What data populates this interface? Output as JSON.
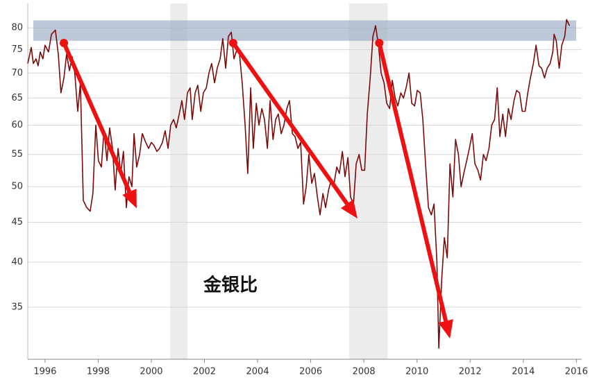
{
  "chart_data": {
    "type": "line",
    "annotation": "金银比",
    "log_y": true,
    "xlim": [
      1995.35,
      2016.2
    ],
    "ylim": [
      30,
      86
    ],
    "xticks": [
      1996,
      1998,
      2000,
      2002,
      2004,
      2006,
      2008,
      2010,
      2012,
      2014,
      2016
    ],
    "yticks": [
      35,
      40,
      45,
      50,
      55,
      60,
      65,
      70,
      75,
      80
    ],
    "grid": true,
    "shaded_x": [
      [
        2000.71,
        2001.36
      ],
      [
        2007.45,
        2008.9
      ]
    ],
    "shaded_y": [
      77,
      81.8
    ],
    "arrow_color": "#ee1111",
    "arrows": [
      {
        "from": [
          1996.71,
          76.5
        ],
        "to": [
          1999.45,
          46.9
        ]
      },
      {
        "from": [
          2003.08,
          76.5
        ],
        "to": [
          2007.76,
          45.5
        ]
      },
      {
        "from": [
          2008.58,
          76.5
        ],
        "to": [
          2011.24,
          31.9
        ]
      }
    ],
    "x": [
      1995.35,
      1995.48,
      1995.56,
      1995.66,
      1995.74,
      1995.82,
      1995.92,
      1996.0,
      1996.13,
      1996.24,
      1996.39,
      1996.5,
      1996.6,
      1996.71,
      1996.81,
      1996.92,
      1997.02,
      1997.12,
      1997.23,
      1997.33,
      1997.44,
      1997.57,
      1997.7,
      1997.8,
      1997.91,
      1998.01,
      1998.12,
      1998.22,
      1998.33,
      1998.43,
      1998.54,
      1998.64,
      1998.75,
      1998.85,
      1998.95,
      1999.06,
      1999.16,
      1999.27,
      1999.35,
      1999.45,
      1999.56,
      1999.66,
      1999.79,
      1999.9,
      2000.0,
      2000.1,
      2000.21,
      2000.31,
      2000.42,
      2000.52,
      2000.63,
      2000.73,
      2000.84,
      2000.94,
      2001.05,
      2001.15,
      2001.25,
      2001.36,
      2001.46,
      2001.54,
      2001.65,
      2001.75,
      2001.86,
      2001.96,
      2002.07,
      2002.17,
      2002.27,
      2002.38,
      2002.48,
      2002.59,
      2002.69,
      2002.8,
      2002.9,
      2003.01,
      2003.11,
      2003.22,
      2003.32,
      2003.42,
      2003.53,
      2003.63,
      2003.74,
      2003.84,
      2003.95,
      2004.05,
      2004.16,
      2004.26,
      2004.37,
      2004.47,
      2004.58,
      2004.68,
      2004.78,
      2004.89,
      2004.99,
      2005.1,
      2005.2,
      2005.31,
      2005.41,
      2005.52,
      2005.62,
      2005.73,
      2005.83,
      2005.93,
      2006.04,
      2006.14,
      2006.25,
      2006.35,
      2006.46,
      2006.56,
      2006.67,
      2006.77,
      2006.88,
      2006.98,
      2007.08,
      2007.19,
      2007.29,
      2007.4,
      2007.5,
      2007.61,
      2007.71,
      2007.82,
      2007.92,
      2008.03,
      2008.13,
      2008.24,
      2008.34,
      2008.44,
      2008.55,
      2008.65,
      2008.76,
      2008.86,
      2008.97,
      2009.07,
      2009.18,
      2009.28,
      2009.39,
      2009.49,
      2009.59,
      2009.7,
      2009.8,
      2009.91,
      2010.01,
      2010.12,
      2010.22,
      2010.33,
      2010.43,
      2010.54,
      2010.64,
      2010.75,
      2010.82,
      2010.93,
      2011.03,
      2011.14,
      2011.24,
      2011.35,
      2011.45,
      2011.56,
      2011.66,
      2011.76,
      2011.87,
      2011.97,
      2012.08,
      2012.18,
      2012.29,
      2012.39,
      2012.5,
      2012.6,
      2012.71,
      2012.81,
      2012.92,
      2013.02,
      2013.12,
      2013.23,
      2013.33,
      2013.44,
      2013.54,
      2013.65,
      2013.75,
      2013.86,
      2013.96,
      2014.07,
      2014.17,
      2014.27,
      2014.38,
      2014.48,
      2014.59,
      2014.69,
      2014.8,
      2014.9,
      2015.01,
      2015.11,
      2015.16,
      2015.24,
      2015.35,
      2015.45,
      2015.56,
      2015.63,
      2015.74
    ],
    "series": [
      {
        "color": "#7a0a0a",
        "values": [
          72,
          75.5,
          72,
          73,
          71.5,
          74.5,
          73,
          76,
          74.5,
          78.5,
          79.5,
          74,
          66,
          69,
          74,
          70.5,
          73.5,
          70,
          62.5,
          68,
          48,
          47,
          46.5,
          49,
          60,
          54,
          53,
          59,
          54,
          59.5,
          56,
          49.5,
          56,
          52,
          55.5,
          47,
          51.5,
          50,
          58.5,
          53,
          55,
          58.5,
          57,
          56,
          57,
          56.5,
          55.5,
          56,
          57,
          59,
          56,
          60,
          61,
          59.5,
          62,
          64.5,
          61,
          66,
          67,
          61,
          66,
          67.5,
          62.5,
          66,
          67,
          70,
          72,
          68,
          71,
          73,
          77.5,
          71,
          78,
          79,
          73,
          75,
          74,
          68,
          60,
          52,
          67,
          56,
          64,
          60,
          63,
          61,
          56,
          64.5,
          57.5,
          61,
          62,
          58.5,
          60,
          63,
          64.5,
          58.5,
          58,
          56,
          57,
          47.5,
          50,
          55,
          50.5,
          52,
          48.5,
          46,
          49,
          47,
          49.5,
          51,
          50.5,
          53,
          52,
          55.5,
          51.5,
          54.5,
          48.5,
          47.5,
          53.5,
          55,
          52.5,
          52.5,
          62,
          69,
          78,
          80.5,
          76,
          70,
          68,
          64,
          63,
          68.5,
          65,
          63.5,
          66,
          65,
          67,
          70,
          64,
          63.5,
          66.5,
          66,
          61,
          53,
          47,
          46,
          47.5,
          40,
          31,
          38,
          43,
          40.5,
          53.5,
          48.5,
          57.5,
          55,
          50,
          52,
          54,
          56,
          58.5,
          53.5,
          52.5,
          51,
          55,
          54,
          56,
          60,
          61,
          67,
          58,
          62,
          58,
          63,
          61,
          64.5,
          66.5,
          66,
          62.5,
          62.5,
          66,
          69,
          72,
          76,
          71.5,
          71,
          69,
          71,
          72,
          74.5,
          78.5,
          77,
          71,
          76,
          78,
          82,
          80.5
        ]
      }
    ]
  }
}
